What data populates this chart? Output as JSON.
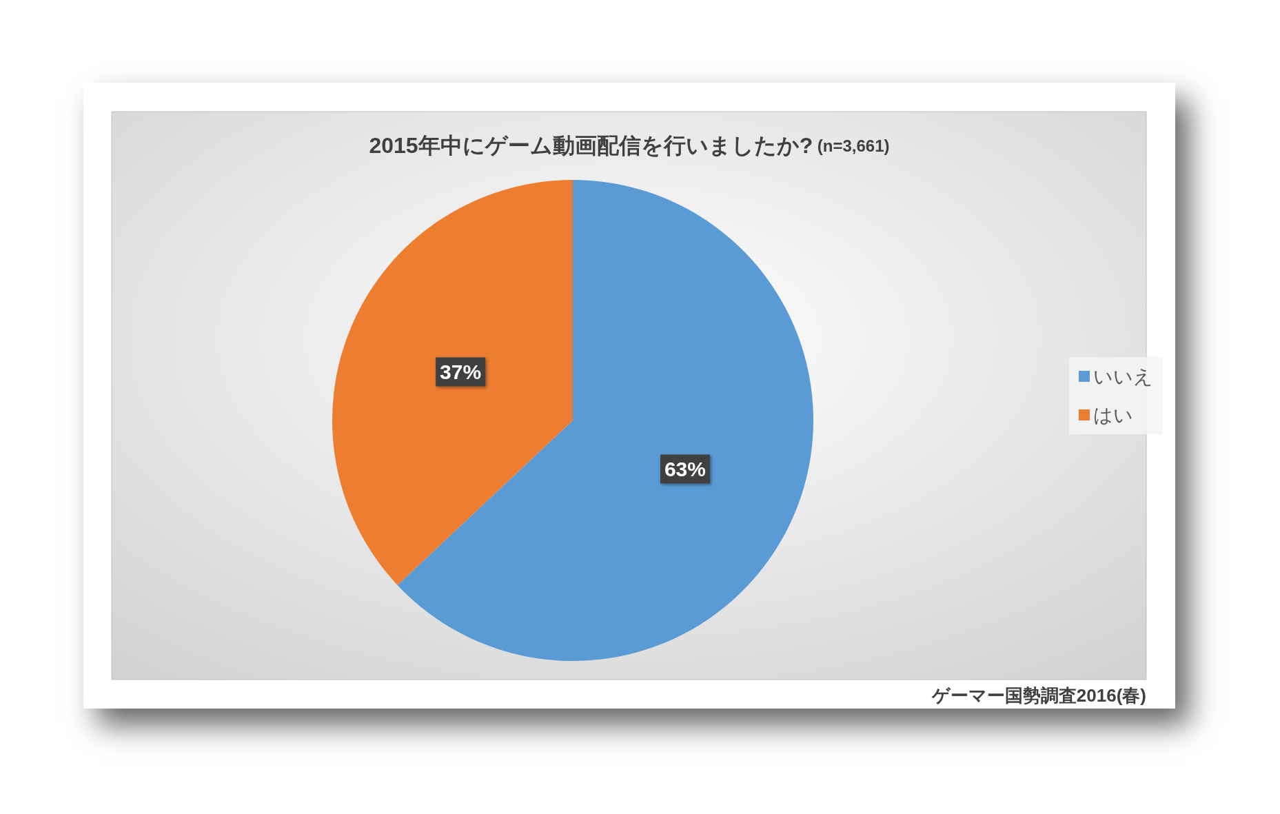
{
  "chart_data": {
    "type": "pie",
    "title": "2015年中にゲーム動画配信を行いましたか?",
    "subtitle": "(n=3,661)",
    "categories": [
      "いいえ",
      "はい"
    ],
    "values": [
      63,
      37
    ],
    "colors": [
      "#5b9bd5",
      "#ed7d31"
    ],
    "value_labels": [
      "63%",
      "37%"
    ],
    "legend": "right",
    "annotations": [
      "ゲーマー国勢調査2016(春)"
    ]
  }
}
